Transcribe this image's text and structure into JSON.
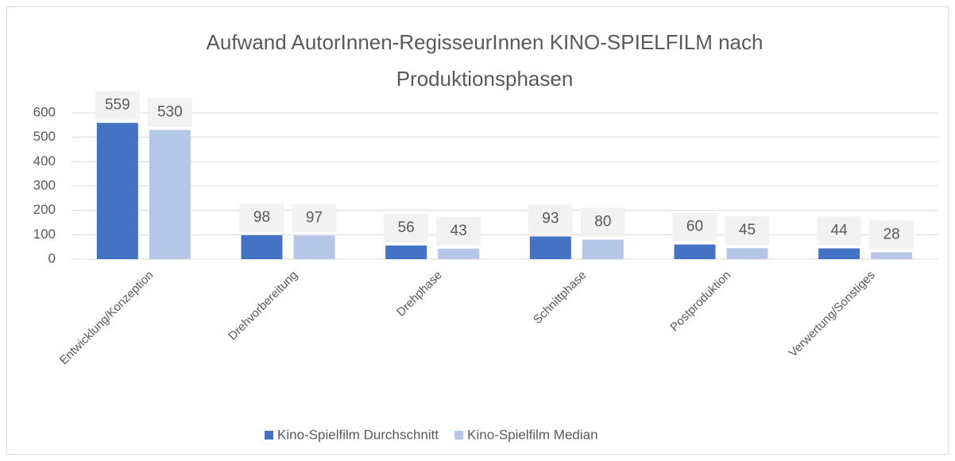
{
  "chart_data": {
    "type": "bar",
    "title": "Aufwand AutorInnen-RegisseurInnen KINO-SPIELFILM nach Produktionsphasen",
    "categories": [
      "Entwicklung/Konzeption",
      "Drehvorbereitung",
      "Drehphase",
      "Schnittphase",
      "Postproduktion",
      "Verwertung/Sonstiges"
    ],
    "series": [
      {
        "name": "Kino-Spielfilm Durchschnitt",
        "color": "#4472c4",
        "values": [
          559,
          98,
          56,
          93,
          60,
          44
        ]
      },
      {
        "name": "Kino-Spielfilm Median",
        "color": "#b4c7e7",
        "values": [
          530,
          97,
          43,
          80,
          45,
          28
        ]
      }
    ],
    "ylim": [
      0,
      600
    ],
    "yticks": [
      0,
      100,
      200,
      300,
      400,
      500,
      600
    ],
    "grid": true,
    "legend": "bottom"
  }
}
